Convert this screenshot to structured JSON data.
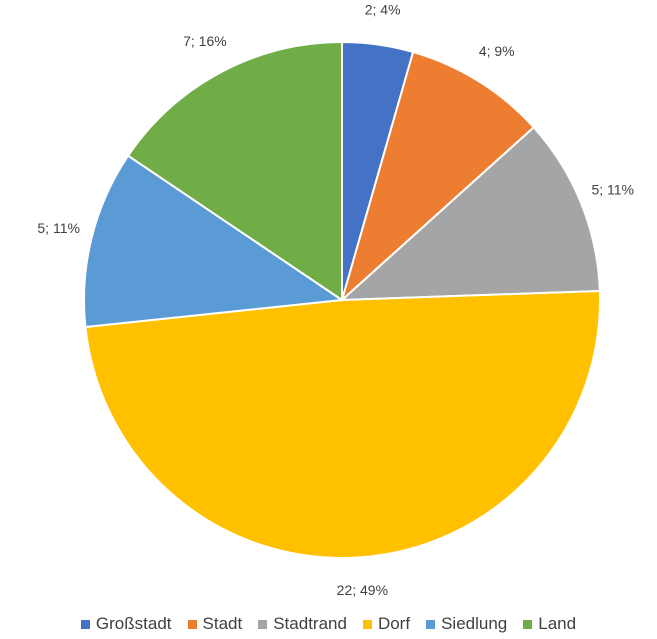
{
  "chart_data": {
    "type": "pie",
    "categories": [
      "Großstadt",
      "Stadt",
      "Stadtrand",
      "Dorf",
      "Siedlung",
      "Land"
    ],
    "values": [
      2,
      4,
      5,
      22,
      5,
      7
    ],
    "percentages": [
      4,
      9,
      11,
      49,
      11,
      16
    ],
    "data_labels": [
      "2; 4%",
      "4; 9%",
      "5; 11%",
      "22; 49%",
      "5; 11%",
      "7; 16%"
    ],
    "colors": [
      "#4472C4",
      "#ED7D31",
      "#A5A5A5",
      "#FFC000",
      "#5B9BD5",
      "#70AD47"
    ],
    "legend_position": "bottom"
  }
}
